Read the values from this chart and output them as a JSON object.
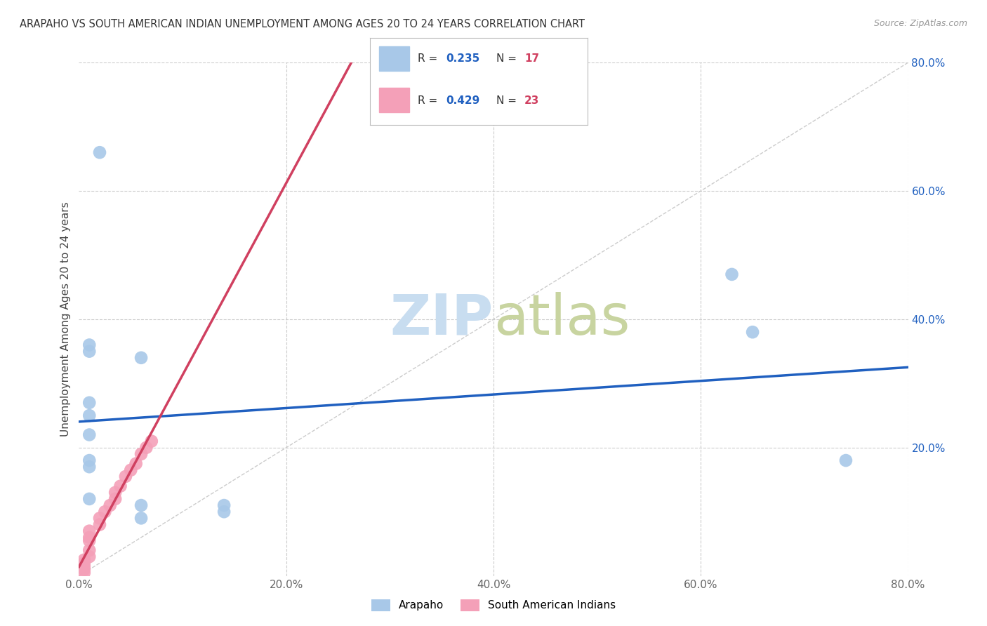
{
  "title": "ARAPAHO VS SOUTH AMERICAN INDIAN UNEMPLOYMENT AMONG AGES 20 TO 24 YEARS CORRELATION CHART",
  "source": "Source: ZipAtlas.com",
  "ylabel": "Unemployment Among Ages 20 to 24 years",
  "xlim": [
    0,
    0.8
  ],
  "ylim": [
    0,
    0.8
  ],
  "xtick_labels": [
    "0.0%",
    "20.0%",
    "40.0%",
    "60.0%",
    "80.0%"
  ],
  "xtick_vals": [
    0,
    0.2,
    0.4,
    0.6,
    0.8
  ],
  "ytick_vals": [
    0.2,
    0.4,
    0.6,
    0.8
  ],
  "ytick_right_labels": [
    "20.0%",
    "40.0%",
    "60.0%",
    "80.0%"
  ],
  "arapaho_x": [
    0.02,
    0.01,
    0.01,
    0.06,
    0.01,
    0.01,
    0.01,
    0.01,
    0.01,
    0.01,
    0.06,
    0.14,
    0.63,
    0.65,
    0.74,
    0.14,
    0.06
  ],
  "arapaho_y": [
    0.66,
    0.36,
    0.35,
    0.34,
    0.27,
    0.25,
    0.22,
    0.18,
    0.17,
    0.12,
    0.11,
    0.11,
    0.47,
    0.38,
    0.18,
    0.1,
    0.09
  ],
  "sa_indian_x": [
    0.005,
    0.005,
    0.005,
    0.005,
    0.005,
    0.01,
    0.01,
    0.01,
    0.01,
    0.01,
    0.02,
    0.02,
    0.025,
    0.03,
    0.035,
    0.035,
    0.04,
    0.045,
    0.05,
    0.055,
    0.06,
    0.065,
    0.07
  ],
  "sa_indian_y": [
    0.005,
    0.01,
    0.015,
    0.02,
    0.025,
    0.03,
    0.04,
    0.055,
    0.06,
    0.07,
    0.08,
    0.09,
    0.1,
    0.11,
    0.12,
    0.13,
    0.14,
    0.155,
    0.165,
    0.175,
    0.19,
    0.2,
    0.21
  ],
  "arapaho_R": 0.235,
  "arapaho_N": 17,
  "sa_indian_R": 0.429,
  "sa_indian_N": 23,
  "arapaho_color": "#a8c8e8",
  "sa_indian_color": "#f4a0b8",
  "arapaho_line_color": "#2060c0",
  "sa_indian_line_color": "#d04060",
  "diagonal_color": "#cccccc",
  "background_color": "#ffffff",
  "grid_color": "#cccccc",
  "legend_box_color": "#cccccc",
  "R_text_color": "#333333",
  "R_val_color": "#2060c0",
  "N_val_color": "#d04060"
}
